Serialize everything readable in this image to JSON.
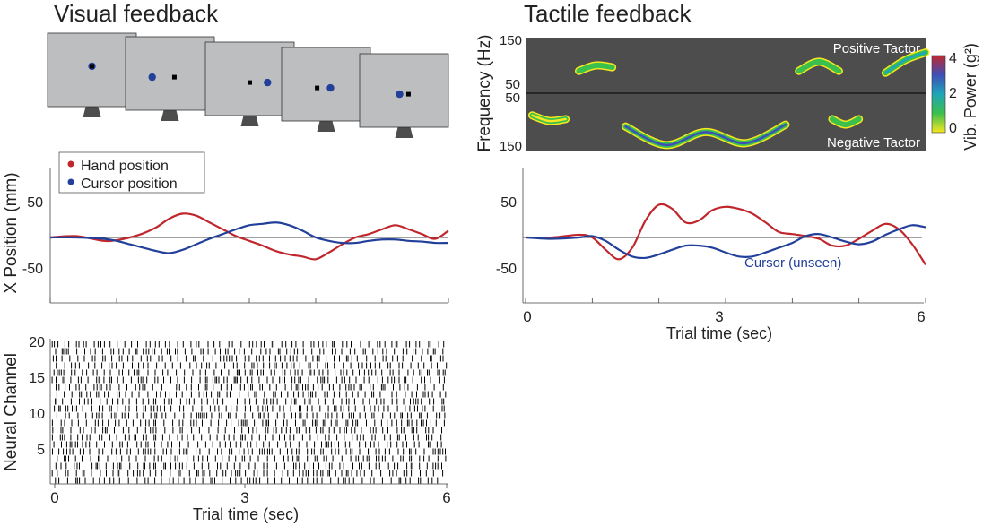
{
  "visual": {
    "title": "Visual feedback",
    "legend": {
      "hand_label": "Hand position",
      "cursor_label": "Cursor position"
    },
    "ylabel": "X Position (mm)",
    "yticks": [
      "50",
      "-50"
    ],
    "raster_ylabel": "Neural Channel",
    "raster_yticks": [
      "20",
      "15",
      "10",
      "5"
    ],
    "xticks": [
      "0",
      "3",
      "6"
    ],
    "xlabel": "Trial time (sec)"
  },
  "tactile": {
    "title": "Tactile feedback",
    "spec_ylabel": "Frequency (Hz)",
    "spec_yticks": [
      "150",
      "50",
      "50",
      "150"
    ],
    "positive_label": "Positive Tactor",
    "negative_label": "Negative Tactor",
    "colorbar_label": "Vib. Power (g²)",
    "colorbar_ticks": [
      "4",
      "2",
      "0"
    ],
    "yticks": [
      "50",
      "-50"
    ],
    "cursor_label": "Cursor (unseen)",
    "xticks": [
      "0",
      "3",
      "6"
    ],
    "xlabel": "Trial time (sec)"
  },
  "colors": {
    "hand": "#c0272d",
    "cursor": "#22409a",
    "monitor_screen": "#bcbec0",
    "monitor_stand": "#4d4d4d",
    "spectrogram_bg": "#4d4d4d"
  },
  "monitors": [
    {
      "cursor_dx": 0.0,
      "cursor_dy": -0.05,
      "target_dx": 0.0,
      "target_dy": -0.05
    },
    {
      "cursor_dx": -0.2,
      "cursor_dy": 0.05,
      "target_dx": 0.05,
      "target_dy": 0.05
    },
    {
      "cursor_dx": 0.2,
      "cursor_dy": 0.05,
      "target_dx": 0.0,
      "target_dy": 0.05
    },
    {
      "cursor_dx": 0.05,
      "cursor_dy": 0.05,
      "target_dx": -0.1,
      "target_dy": 0.05
    },
    {
      "cursor_dx": -0.05,
      "cursor_dy": 0.05,
      "target_dx": 0.05,
      "target_dy": 0.05
    }
  ],
  "chart_data": [
    {
      "type": "line",
      "id": "visual-position",
      "xlim": [
        0,
        6
      ],
      "ylim": [
        -100,
        100
      ],
      "grid": false,
      "series": [
        {
          "name": "Hand position",
          "x": [
            0,
            0.4,
            0.8,
            1.0,
            1.2,
            1.4,
            1.6,
            1.8,
            2.0,
            2.2,
            2.4,
            2.6,
            2.8,
            3.0,
            3.2,
            3.4,
            3.6,
            3.8,
            4.0,
            4.2,
            4.4,
            4.6,
            4.8,
            5.0,
            5.2,
            5.4,
            5.6,
            5.8,
            6.0
          ],
          "y": [
            0,
            2,
            -5,
            -4,
            0,
            6,
            15,
            28,
            35,
            32,
            22,
            12,
            2,
            -5,
            -12,
            -20,
            -25,
            -28,
            -32,
            -22,
            -10,
            0,
            5,
            12,
            18,
            12,
            5,
            -2,
            10
          ]
        },
        {
          "name": "Cursor position",
          "x": [
            0,
            0.4,
            0.8,
            1.0,
            1.2,
            1.4,
            1.6,
            1.8,
            2.0,
            2.2,
            2.4,
            2.6,
            2.8,
            3.0,
            3.2,
            3.4,
            3.6,
            3.8,
            4.0,
            4.2,
            4.4,
            4.6,
            4.8,
            5.0,
            5.2,
            5.4,
            5.6,
            5.8,
            6.0
          ],
          "y": [
            0,
            0,
            -2,
            -5,
            -10,
            -15,
            -20,
            -23,
            -18,
            -10,
            -2,
            5,
            12,
            18,
            20,
            22,
            18,
            10,
            0,
            -5,
            -8,
            -8,
            -5,
            -3,
            -3,
            -5,
            -6,
            -8,
            -8
          ]
        }
      ]
    },
    {
      "type": "line",
      "id": "tactile-position",
      "xlim": [
        0,
        6
      ],
      "ylim": [
        -100,
        100
      ],
      "grid": false,
      "series": [
        {
          "name": "Hand position",
          "x": [
            0,
            0.4,
            0.8,
            1.0,
            1.2,
            1.4,
            1.6,
            1.8,
            2.0,
            2.2,
            2.4,
            2.6,
            2.8,
            3.0,
            3.2,
            3.4,
            3.6,
            3.8,
            4.0,
            4.2,
            4.4,
            4.6,
            4.8,
            5.0,
            5.2,
            5.4,
            5.6,
            5.8,
            6.0
          ],
          "y": [
            0,
            0,
            4,
            0,
            -18,
            -32,
            -15,
            25,
            48,
            42,
            22,
            25,
            40,
            45,
            42,
            35,
            22,
            8,
            5,
            2,
            -2,
            -12,
            -12,
            -2,
            10,
            20,
            12,
            -10,
            -40
          ]
        },
        {
          "name": "Cursor (unseen)",
          "x": [
            0,
            0.4,
            0.8,
            1.0,
            1.2,
            1.4,
            1.6,
            1.8,
            2.0,
            2.2,
            2.4,
            2.6,
            2.8,
            3.0,
            3.2,
            3.4,
            3.6,
            3.8,
            4.0,
            4.2,
            4.4,
            4.6,
            4.8,
            5.0,
            5.2,
            5.4,
            5.6,
            5.8,
            6.0
          ],
          "y": [
            0,
            -2,
            0,
            2,
            -5,
            -18,
            -28,
            -30,
            -25,
            -18,
            -12,
            -12,
            -15,
            -22,
            -28,
            -28,
            -22,
            -15,
            -8,
            2,
            5,
            0,
            -6,
            -10,
            -6,
            4,
            12,
            18,
            15
          ]
        }
      ]
    },
    {
      "type": "raster",
      "id": "neural-raster",
      "channels": 20,
      "xlim": [
        0,
        6
      ],
      "note_seed": 7
    },
    {
      "type": "heatmap",
      "id": "tactile-spectrogram",
      "xlim": [
        0,
        6
      ],
      "colorbar_range": [
        0,
        4
      ],
      "bursts": [
        {
          "tactor": "positive",
          "t": [
            0.8,
            1.3
          ],
          "f": [
            60,
            75,
            70
          ],
          "power": 1.5
        },
        {
          "tactor": "positive",
          "t": [
            4.1,
            4.7
          ],
          "f": [
            60,
            85,
            60
          ],
          "power": 1.6
        },
        {
          "tactor": "positive",
          "t": [
            5.4,
            6.0
          ],
          "f": [
            55,
            90,
            110
          ],
          "power": 2.2
        },
        {
          "tactor": "negative",
          "t": [
            0.1,
            0.6
          ],
          "f": [
            60,
            75,
            70
          ],
          "power": 0.3
        },
        {
          "tactor": "negative",
          "t": [
            1.5,
            3.9
          ],
          "f": [
            90,
            140,
            105,
            135,
            85
          ],
          "power": 3.0
        },
        {
          "tactor": "negative",
          "t": [
            4.6,
            5.0
          ],
          "f": [
            70,
            85,
            70
          ],
          "power": 1.0
        }
      ]
    }
  ]
}
